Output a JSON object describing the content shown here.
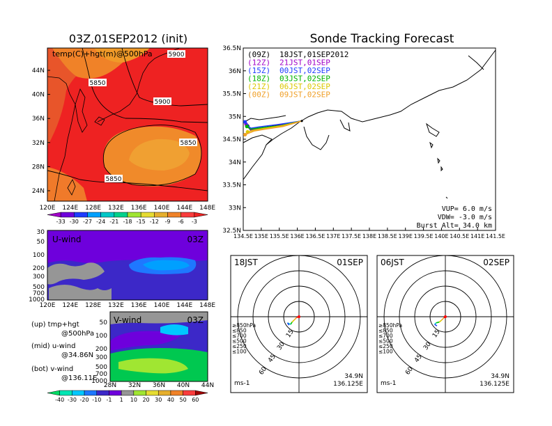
{
  "left_title": "03Z,01SEP2012 (init)",
  "right_title": "Sonde Tracking Forecast",
  "top_map": {
    "panel_label": "temp(C)+hgt(m)@500hPa",
    "y_labels": [
      "44N",
      "40N",
      "36N",
      "32N",
      "28N",
      "24N"
    ],
    "x_labels": [
      "120E",
      "124E",
      "128E",
      "132E",
      "136E",
      "140E",
      "144E",
      "148E"
    ],
    "contour_labels": [
      "5900",
      "5850",
      "5900",
      "5850",
      "5850"
    ]
  },
  "temp_colorbar": {
    "labels": [
      "-33",
      "-30",
      "-27",
      "-24",
      "-21",
      "-18",
      "-15",
      "-12",
      "-9",
      "-6",
      "-3"
    ],
    "colors": [
      "#a000c8",
      "#6e00dc",
      "#1e3cff",
      "#00a0ff",
      "#00c8c8",
      "#00d28c",
      "#a0e632",
      "#e6dc32",
      "#e6af2d",
      "#f08228",
      "#fa3c3c",
      "#ee2222"
    ]
  },
  "uwind": {
    "label": "U-wind",
    "time": "03Z",
    "y_labels": [
      "30",
      "50",
      "100",
      "200",
      "300",
      "500",
      "700",
      "1000"
    ],
    "x_labels": [
      "120E",
      "124E",
      "128E",
      "132E",
      "136E",
      "140E",
      "144E",
      "148E"
    ]
  },
  "vwind": {
    "label": "V-wind",
    "time": "03Z",
    "y_labels": [
      "50",
      "100",
      "200",
      "300",
      "500",
      "700",
      "1000"
    ],
    "x_labels": [
      "28N",
      "32N",
      "36N",
      "40N",
      "44N"
    ]
  },
  "wind_colorbar": {
    "labels": [
      "-40",
      "-30",
      "-20",
      "-10",
      "-1",
      "1",
      "10",
      "20",
      "30",
      "40",
      "50",
      "60"
    ],
    "colors": [
      "#00dc64",
      "#00e6b4",
      "#00c8ff",
      "#1e78ff",
      "#3c28c8",
      "#6e00dc",
      "#969696",
      "#a0e632",
      "#e6dc32",
      "#e6af2d",
      "#f08228",
      "#fa3c3c",
      "#a00000"
    ]
  },
  "notes": [
    {
      "line1": "(up)  tmp+hgt",
      "line2": "@500hPa"
    },
    {
      "line1": "(mid)  u-wind",
      "line2": "@34.86N"
    },
    {
      "line1": "(bot)  v-wind",
      "line2": "@136.11E"
    }
  ],
  "chart_data": {
    "type": "line",
    "title": "Sonde Tracking Forecast",
    "xlim": [
      134.5,
      141.5
    ],
    "ylim": [
      32.5,
      36.5
    ],
    "x_ticks": [
      "134.5E",
      "135E",
      "135.5E",
      "136E",
      "136.5E",
      "137E",
      "137.5E",
      "138E",
      "138.5E",
      "139E",
      "139.5E",
      "140E",
      "140.5E",
      "141E",
      "141.5E"
    ],
    "y_ticks": [
      "32.5N",
      "33N",
      "33.5N",
      "34N",
      "34.5N",
      "35N",
      "35.5N",
      "36N",
      "36.5N"
    ],
    "legend": [
      {
        "code": "(09Z)",
        "label": "18JST,01SEP2012",
        "color": "#000000"
      },
      {
        "code": "(12Z)",
        "label": "21JST,01SEP",
        "color": "#a000c8"
      },
      {
        "code": "(15Z)",
        "label": "00JST,02SEP",
        "color": "#1e3cff"
      },
      {
        "code": "(18Z)",
        "label": "03JST,02SEP",
        "color": "#00b400"
      },
      {
        "code": "(21Z)",
        "label": "06JST,02SEP",
        "color": "#dcc800"
      },
      {
        "code": "(00Z)",
        "label": "09JST,02SEP",
        "color": "#f0a028"
      }
    ],
    "series": [
      {
        "x": [
          136.125,
          135.6,
          135.1,
          134.75,
          134.62
        ],
        "y": [
          34.9,
          34.82,
          34.76,
          34.72,
          34.79
        ],
        "color": "#000000"
      },
      {
        "x": [
          136.125,
          135.5,
          135.0,
          134.7,
          134.58
        ],
        "y": [
          34.9,
          34.8,
          34.74,
          34.7,
          34.83
        ],
        "color": "#a000c8"
      },
      {
        "x": [
          136.125,
          135.45,
          134.95,
          134.7,
          134.55
        ],
        "y": [
          34.9,
          34.82,
          34.77,
          34.74,
          34.88
        ],
        "color": "#1e3cff"
      },
      {
        "x": [
          136.125,
          135.55,
          135.0,
          134.7,
          134.6
        ],
        "y": [
          34.9,
          34.8,
          34.75,
          34.72,
          34.78
        ],
        "color": "#00b400"
      },
      {
        "x": [
          136.125,
          135.6,
          135.1,
          134.8,
          134.62
        ],
        "y": [
          34.9,
          34.8,
          34.74,
          34.7,
          34.66
        ],
        "color": "#dcc800"
      },
      {
        "x": [
          136.125,
          135.6,
          135.1,
          134.8,
          134.55
        ],
        "y": [
          34.9,
          34.78,
          34.72,
          34.68,
          34.6
        ],
        "color": "#f0a028"
      }
    ],
    "annotation": [
      "VUP= 6.0 m/s",
      "VDW= -3.0 m/s",
      "Burst Alt= 34.0 km"
    ]
  },
  "hodographs": [
    {
      "time": "18JST",
      "date": "01SEP",
      "lat": "34.9N",
      "lon": "136.125E",
      "units": "ms-1"
    },
    {
      "time": "06JST",
      "date": "02SEP",
      "lat": "34.9N",
      "lon": "136.125E",
      "units": "ms-1"
    }
  ],
  "hodo_rings": [
    "15",
    "30",
    "45",
    "60"
  ],
  "hodo_legend": [
    {
      "label": "≥850hPa",
      "color": "#ff0000"
    },
    {
      "label": "≤850",
      "color": "#f0a028"
    },
    {
      "label": "≤700",
      "color": "#dcc800"
    },
    {
      "label": "≤500",
      "color": "#00c800"
    },
    {
      "label": "≤250",
      "color": "#00c8c8"
    },
    {
      "label": "≤100",
      "color": "#1e3cff"
    }
  ]
}
